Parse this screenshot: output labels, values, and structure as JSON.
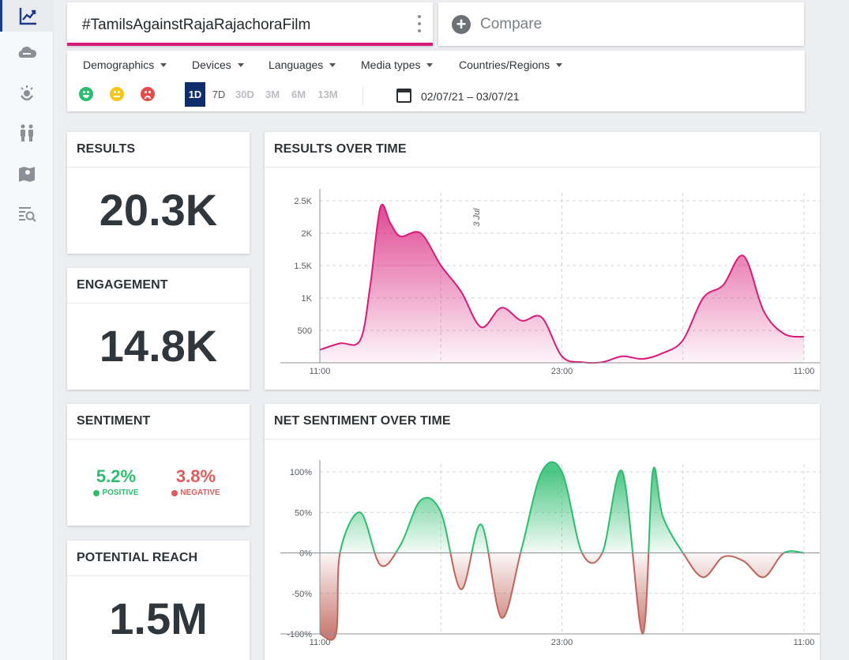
{
  "sidebar": {
    "items": [
      {
        "name": "sidebar-item-trends",
        "icon": "trend-chart-icon",
        "active": true
      },
      {
        "name": "sidebar-item-cloud",
        "icon": "cloud-icon",
        "active": false
      },
      {
        "name": "sidebar-item-influencers",
        "icon": "influencer-icon",
        "active": false
      },
      {
        "name": "sidebar-item-demographics",
        "icon": "people-icon",
        "active": false
      },
      {
        "name": "sidebar-item-map",
        "icon": "map-icon",
        "active": false
      },
      {
        "name": "sidebar-item-results-search",
        "icon": "list-search-icon",
        "active": false
      }
    ]
  },
  "search": {
    "query": "#TamilsAgainstRajaRajachoraFilm",
    "accent": "#d81b78",
    "compare_label": "Compare"
  },
  "filters": {
    "dropdowns": [
      "Demographics",
      "Devices",
      "Languages",
      "Media types",
      "Countries/Regions"
    ],
    "sentiment_icons": [
      "positive-face-icon",
      "neutral-face-icon",
      "negative-face-icon"
    ],
    "ranges": [
      {
        "label": "1D",
        "state": "active"
      },
      {
        "label": "7D",
        "state": "normal"
      },
      {
        "label": "30D",
        "state": "disabled"
      },
      {
        "label": "3M",
        "state": "disabled"
      },
      {
        "label": "6M",
        "state": "disabled"
      },
      {
        "label": "13M",
        "state": "disabled"
      }
    ],
    "date_range": "02/07/21 – 03/07/21"
  },
  "results": {
    "title": "RESULTS",
    "value": "20.3K"
  },
  "engagement": {
    "title": "ENGAGEMENT",
    "value": "14.8K"
  },
  "sentiment": {
    "title": "SENTIMENT",
    "positive_value": "5.2%",
    "positive_label": "POSITIVE",
    "positive_color": "#2dbd6e",
    "negative_value": "3.8%",
    "negative_label": "NEGATIVE",
    "negative_color": "#e05a5a"
  },
  "reach": {
    "title": "POTENTIAL REACH",
    "value": "1.5M"
  },
  "chart_data": [
    {
      "type": "area",
      "title": "RESULTS OVER TIME",
      "x_tick_labels": [
        "11:00",
        "23:00",
        "11:00"
      ],
      "annotation": "3 Jul",
      "y_ticks": [
        "500",
        "1K",
        "1.5K",
        "2K",
        "2.5K"
      ],
      "y_tick_values": [
        500,
        1000,
        1500,
        2000,
        2500
      ],
      "ylim": [
        0,
        2500
      ],
      "color": "#d81b78",
      "x_hours": [
        0,
        1,
        2,
        2.5,
        3,
        3.5,
        4,
        5,
        6,
        7,
        8,
        9,
        10,
        11,
        12,
        13,
        14,
        15,
        16,
        17,
        18,
        19,
        20,
        21,
        22,
        23,
        24
      ],
      "values": [
        200,
        300,
        350,
        1200,
        2400,
        2150,
        1950,
        2000,
        1500,
        1100,
        550,
        850,
        650,
        700,
        100,
        10,
        10,
        100,
        60,
        150,
        350,
        1000,
        1200,
        1650,
        800,
        450,
        400
      ]
    },
    {
      "type": "area",
      "title": "NET SENTIMENT OVER TIME",
      "x_tick_labels": [
        "11:00",
        "23:00",
        "11:00"
      ],
      "y_ticks": [
        "-100%",
        "-50%",
        "0%",
        "50%",
        "100%"
      ],
      "y_tick_values": [
        -100,
        -50,
        0,
        50,
        100
      ],
      "ylim": [
        -100,
        100
      ],
      "positive_color": "#2dbd6e",
      "negative_color": "#c0645a",
      "x_hours": [
        0,
        0.8,
        1,
        2,
        3,
        4,
        5,
        6,
        7,
        8,
        9,
        10,
        11,
        12,
        13,
        14,
        15,
        16,
        16.5,
        17,
        18,
        19,
        20,
        21,
        22,
        23,
        24
      ],
      "values": [
        -100,
        -100,
        0,
        50,
        -15,
        10,
        65,
        50,
        -45,
        35,
        -80,
        5,
        100,
        100,
        0,
        0,
        100,
        -100,
        100,
        45,
        0,
        -30,
        -5,
        -10,
        -30,
        0,
        0
      ]
    }
  ]
}
